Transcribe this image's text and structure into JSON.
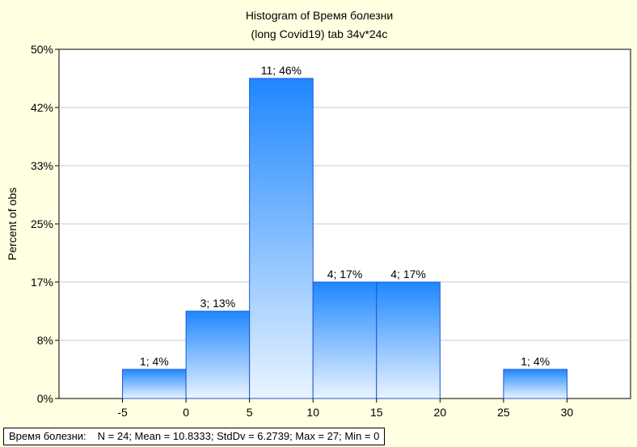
{
  "chart_data": {
    "type": "bar",
    "title": "Histogram of Время болезни",
    "subtitle": "(long Covid19) tab 34v*24c",
    "xlabel": "",
    "ylabel": "Percent of obs",
    "bins": [
      {
        "from": -5,
        "to": 0,
        "count": 1,
        "percent": 4.17,
        "label": "1; 4%"
      },
      {
        "from": 0,
        "to": 5,
        "count": 3,
        "percent": 12.5,
        "label": "3; 13%"
      },
      {
        "from": 5,
        "to": 10,
        "count": 11,
        "percent": 45.83,
        "label": "11; 46%"
      },
      {
        "from": 10,
        "to": 15,
        "count": 4,
        "percent": 16.67,
        "label": "4; 17%"
      },
      {
        "from": 15,
        "to": 20,
        "count": 4,
        "percent": 16.67,
        "label": "4; 17%"
      },
      {
        "from": 20,
        "to": 25,
        "count": 0,
        "percent": 0,
        "label": ""
      },
      {
        "from": 25,
        "to": 30,
        "count": 1,
        "percent": 4.17,
        "label": "1; 4%"
      }
    ],
    "xlim": [
      -10,
      35
    ],
    "ylim": [
      0,
      50
    ],
    "xticks": [
      -5,
      0,
      5,
      10,
      15,
      20,
      25,
      30
    ],
    "yticks": [
      {
        "value": 0,
        "label": "0%"
      },
      {
        "value": 8.33,
        "label": "8%"
      },
      {
        "value": 16.67,
        "label": "17%"
      },
      {
        "value": 25,
        "label": "25%"
      },
      {
        "value": 33.33,
        "label": "33%"
      },
      {
        "value": 41.67,
        "label": "42%"
      },
      {
        "value": 50,
        "label": "50%"
      }
    ],
    "grid": true,
    "colors": {
      "bar_top": "#1e87ff",
      "bar_bottom": "#eaf4ff",
      "bar_stroke": "#1f55d6",
      "background": "#ffffe1"
    }
  },
  "footer": {
    "variable": "Время болезни:",
    "n": "N = 24; Mean = 10.8333; StdDv = 6.2739; Max = 27; Min = 0"
  }
}
